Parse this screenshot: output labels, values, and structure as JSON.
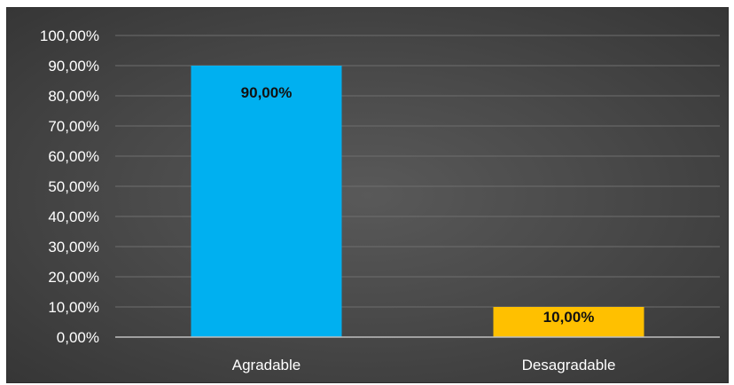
{
  "chart_data": {
    "type": "bar",
    "categories": [
      "Agradable",
      "Desagradable"
    ],
    "values": [
      90,
      10
    ],
    "data_labels": [
      "90,00%",
      "10,00%"
    ],
    "colors": [
      "#00b0f0",
      "#ffc000"
    ],
    "ylim": [
      0,
      100
    ],
    "ytick_labels": [
      "0,00%",
      "10,00%",
      "20,00%",
      "30,00%",
      "40,00%",
      "50,00%",
      "60,00%",
      "70,00%",
      "80,00%",
      "90,00%",
      "100,00%"
    ],
    "grid": true,
    "legend": "none",
    "background": "#4a4a4a"
  }
}
